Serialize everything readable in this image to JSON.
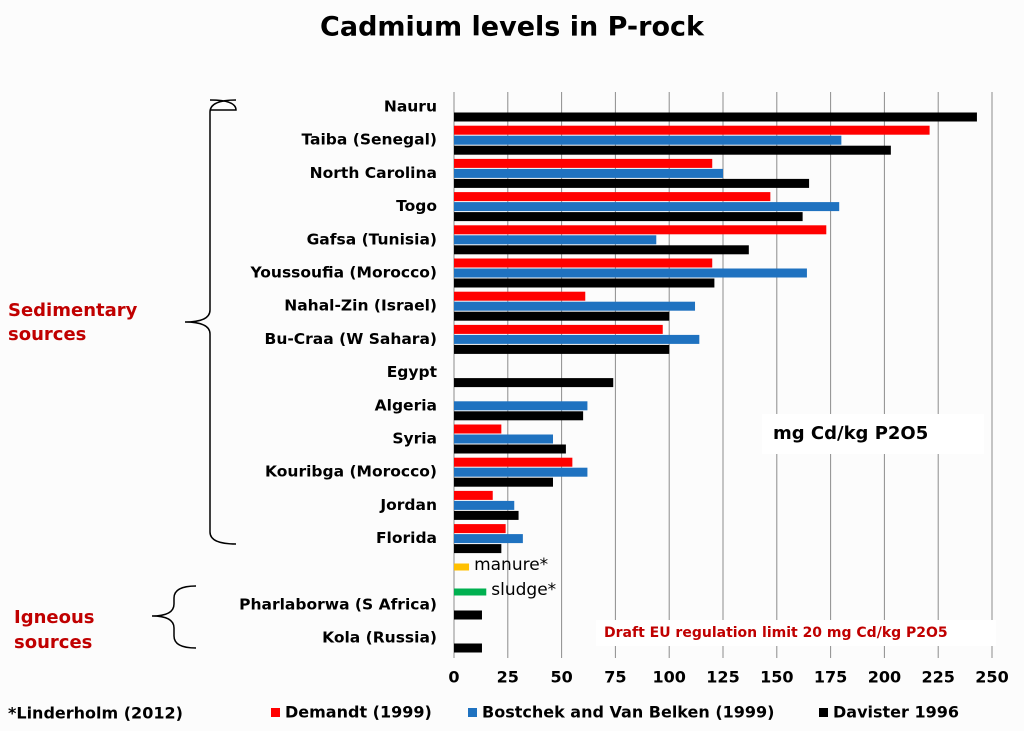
{
  "chart_data": {
    "type": "bar",
    "orientation": "horizontal",
    "title": "Cadmium levels in P-rock",
    "categories": [
      "Nauru",
      "Taiba (Senegal)",
      "North Carolina",
      "Togo",
      "Gafsa (Tunisia)",
      "Youssoufia (Morocco)",
      "Nahal-Zin (Israel)",
      "Bu-Craa (W Sahara)",
      "Egypt",
      "Algeria",
      "Syria",
      "Kouribga (Morocco)",
      "Jordan",
      "Florida",
      null,
      null,
      "Pharlaborwa (S Africa)",
      "Kola (Russia)"
    ],
    "series": [
      {
        "name": "Demandt (1999)",
        "color": "#ff0000",
        "values": [
          null,
          221,
          120,
          147,
          173,
          120,
          61,
          97,
          null,
          null,
          22,
          55,
          18,
          24,
          null,
          null,
          null,
          null
        ]
      },
      {
        "name": "Bostchek and Van Belken (1999)",
        "color": "#1f72c0",
        "values": [
          null,
          180,
          125,
          179,
          94,
          164,
          112,
          114,
          null,
          62,
          46,
          62,
          28,
          32,
          null,
          null,
          null,
          null
        ]
      },
      {
        "name": "Davister 1996",
        "color": "#000000",
        "values": [
          243,
          203,
          165,
          162,
          137,
          121,
          100,
          100,
          74,
          60,
          52,
          46,
          30,
          22,
          null,
          null,
          13,
          13
        ]
      },
      {
        "name": "manure*",
        "color": "#ffc000",
        "values": [
          null,
          null,
          null,
          null,
          null,
          null,
          null,
          null,
          null,
          null,
          null,
          null,
          null,
          null,
          7,
          null,
          null,
          null
        ]
      },
      {
        "name": "sludge*",
        "color": "#00b050",
        "values": [
          null,
          null,
          null,
          null,
          null,
          null,
          null,
          null,
          null,
          null,
          null,
          null,
          null,
          null,
          null,
          15,
          null,
          null
        ]
      }
    ],
    "xlim": [
      0,
      260
    ],
    "xticks": [
      0,
      25,
      50,
      75,
      100,
      125,
      150,
      175,
      200,
      225,
      250
    ],
    "grid": true,
    "groups": [
      {
        "label": [
          "Sedimentary",
          "sources"
        ]
      },
      {
        "label": [
          "Igneous",
          "sources"
        ]
      }
    ],
    "unit_label": "mg Cd/kg P2O5",
    "annotation": "Draft EU regulation limit 20 mg Cd/kg P2O5",
    "footnote": "*Linderholm (2012)"
  }
}
